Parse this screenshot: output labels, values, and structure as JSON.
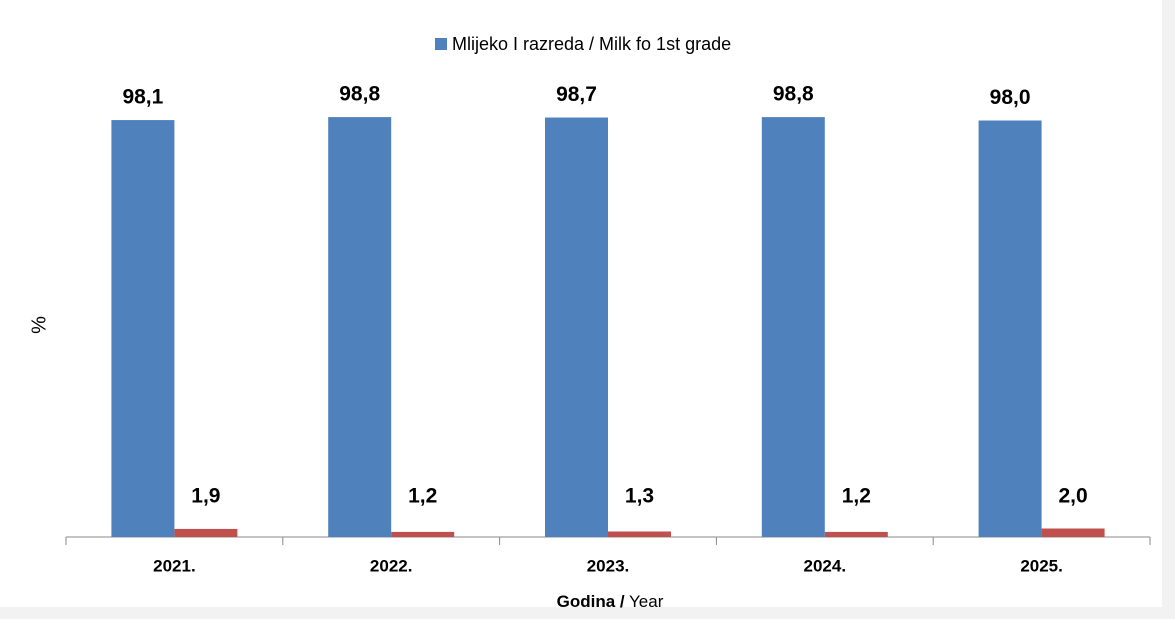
{
  "chart_data": {
    "type": "bar",
    "categories": [
      "2021.",
      "2022.",
      "2023.",
      "2024.",
      "2025."
    ],
    "series": [
      {
        "name": "Mlijeko I razreda / Milk fo 1st grade",
        "color": "#4f81bd",
        "values": [
          98.1,
          98.8,
          98.7,
          98.8,
          98.0
        ],
        "value_labels": [
          "98,1",
          "98,8",
          "98,7",
          "98,8",
          "98,0"
        ]
      },
      {
        "color": "#c0504d",
        "values": [
          1.9,
          1.2,
          1.3,
          1.2,
          2.0
        ],
        "value_labels": [
          "1,9",
          "1,2",
          "1,3",
          "1,2",
          "2,0"
        ]
      }
    ],
    "ylabel": "%",
    "xlabel_parts": [
      "Godina /",
      "Year"
    ],
    "ylim": [
      0,
      100
    ],
    "legend": "top"
  }
}
